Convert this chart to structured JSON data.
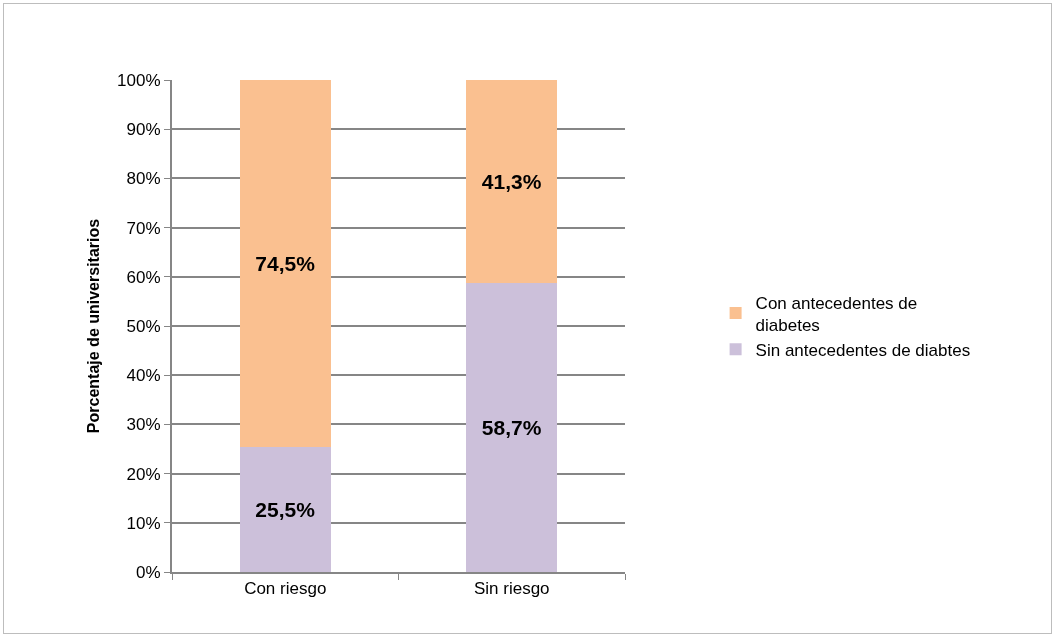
{
  "chart_data": {
    "type": "bar",
    "stacked": true,
    "ylabel": "Porcentaje de universitarios",
    "categories": [
      "Con riesgo",
      "Sin riesgo"
    ],
    "series": [
      {
        "name": "Sin antecedentes de diabtes",
        "color": "#ccc0da",
        "values": [
          25.5,
          58.7
        ],
        "value_labels": [
          "25,5%",
          "58,7%"
        ]
      },
      {
        "name": "Con antecedentes de diabetes",
        "color": "#fac090",
        "values": [
          74.5,
          41.3
        ],
        "value_labels": [
          "74,5%",
          "41,3%"
        ]
      }
    ],
    "ylim": [
      0,
      100
    ],
    "yticks": [
      {
        "value": 0,
        "label": "0%"
      },
      {
        "value": 10,
        "label": "10%"
      },
      {
        "value": 20,
        "label": "20%"
      },
      {
        "value": 30,
        "label": "30%"
      },
      {
        "value": 40,
        "label": "40%"
      },
      {
        "value": 50,
        "label": "50%"
      },
      {
        "value": 60,
        "label": "60%"
      },
      {
        "value": 70,
        "label": "70%"
      },
      {
        "value": 80,
        "label": "80%"
      },
      {
        "value": 90,
        "label": "90%"
      },
      {
        "value": 100,
        "label": "100%"
      }
    ],
    "grid": "y",
    "legend": "right"
  }
}
